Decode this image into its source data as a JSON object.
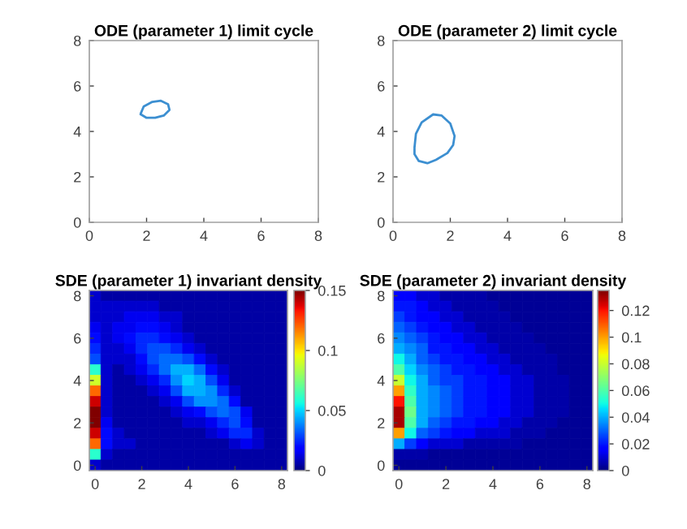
{
  "chart_data": [
    {
      "type": "line",
      "title": "ODE (parameter 1) limit cycle",
      "xlim": [
        0,
        8
      ],
      "ylim": [
        0,
        8
      ],
      "xticks": [
        0,
        2,
        4,
        6,
        8
      ],
      "yticks": [
        0,
        2,
        4,
        6,
        8
      ],
      "grid": false,
      "legend": false,
      "series": [
        {
          "color": "#3c8fd1",
          "x": [
            1.8,
            1.9,
            2.2,
            2.5,
            2.75,
            2.8,
            2.6,
            2.3,
            2.0,
            1.8
          ],
          "values": [
            4.8,
            5.1,
            5.3,
            5.35,
            5.2,
            4.95,
            4.7,
            4.6,
            4.6,
            4.75
          ]
        }
      ]
    },
    {
      "type": "line",
      "title": "ODE (parameter 2) limit cycle",
      "xlim": [
        0,
        8
      ],
      "ylim": [
        0,
        8
      ],
      "xticks": [
        0,
        2,
        4,
        6,
        8
      ],
      "yticks": [
        0,
        2,
        4,
        6,
        8
      ],
      "grid": false,
      "legend": false,
      "series": [
        {
          "color": "#3c8fd1",
          "x": [
            0.75,
            0.8,
            1.0,
            1.4,
            1.7,
            2.0,
            2.15,
            2.1,
            1.9,
            1.5,
            1.2,
            0.9,
            0.75,
            0.75
          ],
          "values": [
            3.3,
            3.9,
            4.4,
            4.75,
            4.7,
            4.35,
            3.8,
            3.4,
            3.05,
            2.75,
            2.6,
            2.7,
            3.0,
            3.25
          ]
        }
      ]
    },
    {
      "type": "heatmap",
      "title": "SDE (parameter 1) invariant density",
      "clim": [
        0,
        0.15
      ],
      "cticks": [
        0,
        0.05,
        0.1,
        0.15
      ],
      "categories": [
        "0",
        null,
        null,
        null,
        "2",
        null,
        null,
        null,
        "4",
        null,
        null,
        null,
        "6",
        null,
        null,
        null,
        "8"
      ],
      "y_categories": [
        "8",
        null,
        null,
        null,
        "6",
        null,
        null,
        null,
        "4",
        null,
        null,
        null,
        "2",
        null,
        null,
        null,
        "0"
      ],
      "cells": [
        [
          0.01,
          0.005,
          0.005,
          0.005,
          0.005,
          0.005,
          0.005,
          0.005,
          0.005,
          0.005,
          0.005,
          0.005,
          0.005,
          0.005,
          0.005,
          0.005,
          0.005
        ],
        [
          0.01,
          0.01,
          0.01,
          0.01,
          0.01,
          0.01,
          0.005,
          0.005,
          0.005,
          0.005,
          0.005,
          0.005,
          0.005,
          0.005,
          0.005,
          0.005,
          0.005
        ],
        [
          0.01,
          0.01,
          0.01,
          0.015,
          0.015,
          0.015,
          0.01,
          0.01,
          0.005,
          0.005,
          0.005,
          0.005,
          0.005,
          0.005,
          0.005,
          0.005,
          0.005
        ],
        [
          0.015,
          0.01,
          0.015,
          0.015,
          0.02,
          0.02,
          0.015,
          0.01,
          0.005,
          0.005,
          0.005,
          0.005,
          0.005,
          0.005,
          0.005,
          0.005,
          0.005
        ],
        [
          0.02,
          0.01,
          0.015,
          0.02,
          0.025,
          0.025,
          0.02,
          0.015,
          0.01,
          0.005,
          0.005,
          0.005,
          0.005,
          0.005,
          0.005,
          0.005,
          0.005
        ],
        [
          0.025,
          0.01,
          0.01,
          0.015,
          0.025,
          0.03,
          0.03,
          0.025,
          0.015,
          0.01,
          0.005,
          0.005,
          0.005,
          0.005,
          0.005,
          0.005,
          0.005
        ],
        [
          0.03,
          0.01,
          0.01,
          0.01,
          0.02,
          0.03,
          0.035,
          0.035,
          0.03,
          0.02,
          0.01,
          0.005,
          0.005,
          0.005,
          0.005,
          0.005,
          0.005
        ],
        [
          0.06,
          0.01,
          0.005,
          0.01,
          0.015,
          0.025,
          0.035,
          0.045,
          0.045,
          0.035,
          0.02,
          0.01,
          0.005,
          0.005,
          0.005,
          0.005,
          0.005
        ],
        [
          0.09,
          0.01,
          0.005,
          0.005,
          0.01,
          0.015,
          0.025,
          0.04,
          0.05,
          0.045,
          0.03,
          0.015,
          0.005,
          0.005,
          0.005,
          0.005,
          0.005
        ],
        [
          0.12,
          0.01,
          0.005,
          0.005,
          0.005,
          0.01,
          0.015,
          0.03,
          0.045,
          0.045,
          0.04,
          0.025,
          0.01,
          0.005,
          0.005,
          0.005,
          0.005
        ],
        [
          0.14,
          0.01,
          0.005,
          0.005,
          0.005,
          0.005,
          0.01,
          0.015,
          0.03,
          0.04,
          0.04,
          0.035,
          0.02,
          0.005,
          0.005,
          0.005,
          0.005
        ],
        [
          0.15,
          0.01,
          0.005,
          0.005,
          0.005,
          0.005,
          0.005,
          0.01,
          0.015,
          0.02,
          0.03,
          0.035,
          0.03,
          0.015,
          0.005,
          0.005,
          0.005
        ],
        [
          0.15,
          0.015,
          0.005,
          0.005,
          0.005,
          0.005,
          0.005,
          0.005,
          0.01,
          0.01,
          0.015,
          0.025,
          0.03,
          0.02,
          0.005,
          0.005,
          0.005
        ],
        [
          0.14,
          0.02,
          0.01,
          0.005,
          0.005,
          0.005,
          0.005,
          0.005,
          0.005,
          0.005,
          0.01,
          0.015,
          0.025,
          0.025,
          0.01,
          0.005,
          0.005
        ],
        [
          0.12,
          0.02,
          0.01,
          0.01,
          0.005,
          0.005,
          0.005,
          0.005,
          0.005,
          0.005,
          0.005,
          0.005,
          0.01,
          0.015,
          0.01,
          0.005,
          0.005
        ],
        [
          0.06,
          0.01,
          0.005,
          0.005,
          0.005,
          0.005,
          0.005,
          0.005,
          0.005,
          0.005,
          0.005,
          0.005,
          0.005,
          0.005,
          0.005,
          0.005,
          0.005
        ],
        [
          0.01,
          0.005,
          0.005,
          0.005,
          0.005,
          0.005,
          0.005,
          0.005,
          0.005,
          0.005,
          0.005,
          0.005,
          0.005,
          0.005,
          0.005,
          0.005,
          0.005
        ]
      ]
    },
    {
      "type": "heatmap",
      "title": "SDE (parameter 2) invariant density",
      "clim": [
        0,
        0.135
      ],
      "cticks": [
        0,
        0.02,
        0.04,
        0.06,
        0.08,
        0.1,
        0.12
      ],
      "categories": [
        "0",
        null,
        null,
        null,
        "2",
        null,
        null,
        null,
        "4",
        null,
        null,
        null,
        "6",
        null,
        null,
        null,
        "8"
      ],
      "y_categories": [
        "8",
        null,
        null,
        null,
        "6",
        null,
        null,
        null,
        "4",
        null,
        null,
        null,
        "2",
        null,
        null,
        null,
        "0"
      ],
      "cells": [
        [
          0.015,
          0.015,
          0.01,
          0.01,
          0.005,
          0.005,
          0.005,
          0.005,
          0.003,
          0.003,
          0.003,
          0.003,
          0.003,
          0.003,
          0.003,
          0.003,
          0.003
        ],
        [
          0.02,
          0.02,
          0.015,
          0.01,
          0.01,
          0.005,
          0.005,
          0.005,
          0.005,
          0.003,
          0.003,
          0.003,
          0.003,
          0.003,
          0.003,
          0.003,
          0.003
        ],
        [
          0.025,
          0.02,
          0.015,
          0.015,
          0.01,
          0.01,
          0.005,
          0.005,
          0.005,
          0.005,
          0.003,
          0.003,
          0.003,
          0.003,
          0.003,
          0.003,
          0.003
        ],
        [
          0.03,
          0.025,
          0.02,
          0.015,
          0.015,
          0.01,
          0.01,
          0.005,
          0.005,
          0.005,
          0.005,
          0.003,
          0.003,
          0.003,
          0.003,
          0.003,
          0.003
        ],
        [
          0.035,
          0.03,
          0.025,
          0.02,
          0.015,
          0.015,
          0.01,
          0.01,
          0.005,
          0.005,
          0.005,
          0.005,
          0.003,
          0.003,
          0.003,
          0.003,
          0.003
        ],
        [
          0.04,
          0.035,
          0.03,
          0.02,
          0.02,
          0.015,
          0.015,
          0.01,
          0.01,
          0.005,
          0.005,
          0.005,
          0.005,
          0.003,
          0.003,
          0.003,
          0.003
        ],
        [
          0.05,
          0.04,
          0.03,
          0.025,
          0.02,
          0.02,
          0.015,
          0.015,
          0.01,
          0.01,
          0.005,
          0.005,
          0.005,
          0.005,
          0.003,
          0.003,
          0.003
        ],
        [
          0.06,
          0.045,
          0.035,
          0.03,
          0.025,
          0.02,
          0.02,
          0.015,
          0.015,
          0.01,
          0.01,
          0.005,
          0.005,
          0.005,
          0.003,
          0.003,
          0.003
        ],
        [
          0.08,
          0.05,
          0.04,
          0.03,
          0.025,
          0.025,
          0.02,
          0.02,
          0.015,
          0.015,
          0.01,
          0.01,
          0.005,
          0.005,
          0.005,
          0.003,
          0.003
        ],
        [
          0.1,
          0.055,
          0.04,
          0.035,
          0.03,
          0.025,
          0.02,
          0.02,
          0.015,
          0.015,
          0.01,
          0.01,
          0.005,
          0.005,
          0.005,
          0.003,
          0.003
        ],
        [
          0.12,
          0.06,
          0.04,
          0.035,
          0.03,
          0.025,
          0.02,
          0.02,
          0.015,
          0.015,
          0.01,
          0.01,
          0.005,
          0.005,
          0.005,
          0.003,
          0.003
        ],
        [
          0.13,
          0.065,
          0.04,
          0.035,
          0.03,
          0.025,
          0.02,
          0.02,
          0.015,
          0.015,
          0.01,
          0.01,
          0.005,
          0.005,
          0.005,
          0.003,
          0.003
        ],
        [
          0.13,
          0.06,
          0.04,
          0.03,
          0.025,
          0.02,
          0.02,
          0.015,
          0.015,
          0.01,
          0.01,
          0.005,
          0.005,
          0.005,
          0.003,
          0.003,
          0.003
        ],
        [
          0.1,
          0.05,
          0.03,
          0.025,
          0.02,
          0.015,
          0.015,
          0.01,
          0.01,
          0.01,
          0.005,
          0.005,
          0.005,
          0.003,
          0.003,
          0.003,
          0.003
        ],
        [
          0.04,
          0.025,
          0.015,
          0.01,
          0.01,
          0.01,
          0.005,
          0.005,
          0.005,
          0.005,
          0.005,
          0.003,
          0.003,
          0.003,
          0.003,
          0.003,
          0.003
        ],
        [
          0.005,
          0.005,
          0.005,
          0.003,
          0.003,
          0.003,
          0.003,
          0.003,
          0.003,
          0.003,
          0.003,
          0.003,
          0.003,
          0.003,
          0.003,
          0.003,
          0.003
        ],
        [
          0.003,
          0.003,
          0.003,
          0.003,
          0.003,
          0.003,
          0.003,
          0.003,
          0.003,
          0.003,
          0.003,
          0.003,
          0.003,
          0.003,
          0.003,
          0.003,
          0.003
        ]
      ]
    }
  ]
}
